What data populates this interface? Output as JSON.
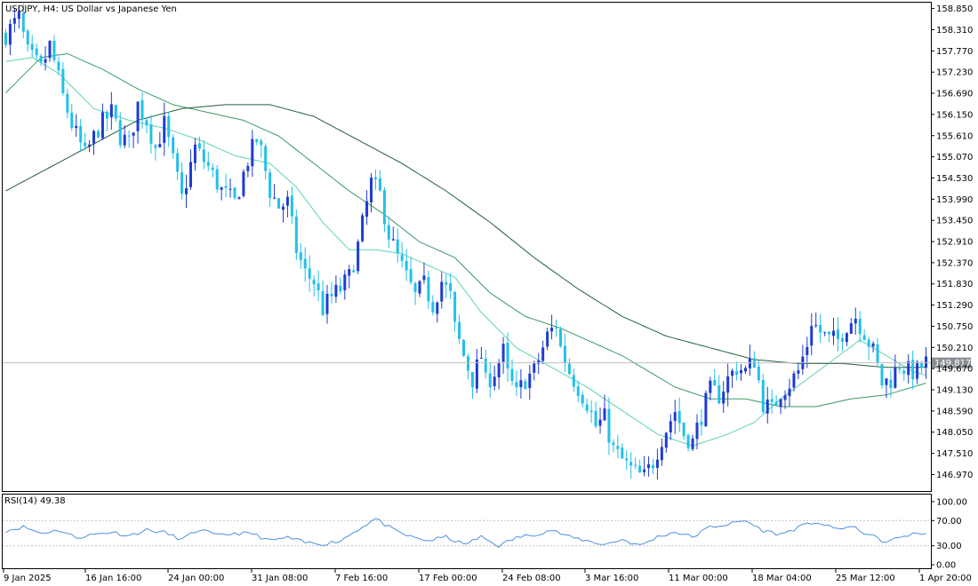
{
  "header": {
    "symbol_line": "USDJPY, H4:  US Dollar vs Japanese Yen",
    "rsi_line": "RSI(14) 49.38"
  },
  "chart_data": [
    {
      "type": "candlestick",
      "title": "USDJPY, H4:  US Dollar vs Japanese Yen",
      "ylim": [
        146.55,
        159.0
      ],
      "y_ticks": [
        "158.850",
        "158.310",
        "157.770",
        "157.230",
        "156.690",
        "156.150",
        "155.610",
        "155.070",
        "154.530",
        "153.990",
        "153.450",
        "152.910",
        "152.370",
        "151.830",
        "151.290",
        "150.750",
        "150.210",
        "149.670",
        "149.130",
        "148.590",
        "148.050",
        "147.510",
        "146.970"
      ],
      "x_ticks": [
        "9 Jan 2025",
        "16 Jan 16:00",
        "24 Jan 00:00",
        "31 Jan 08:00",
        "7 Feb 16:00",
        "17 Feb 00:00",
        "24 Feb 08:00",
        "3 Mar 16:00",
        "11 Mar 00:00",
        "18 Mar 04:00",
        "25 Mar 12:00",
        "1 Apr 20:00"
      ],
      "current_price": "149.817",
      "current_price_value": 149.817,
      "close_path": [
        [
          0,
          158.2
        ],
        [
          3,
          158.6
        ],
        [
          5,
          157.7
        ],
        [
          8,
          157.3
        ],
        [
          10,
          157.9
        ],
        [
          11,
          157.5
        ],
        [
          13,
          156.6
        ],
        [
          15,
          155.9
        ],
        [
          18,
          155.1
        ],
        [
          21,
          155.8
        ],
        [
          24,
          156.2
        ],
        [
          26,
          155.6
        ],
        [
          28,
          155.4
        ],
        [
          30,
          156.4
        ],
        [
          32,
          156.0
        ],
        [
          34,
          155.3
        ],
        [
          36,
          155.9
        ],
        [
          40,
          154.0
        ],
        [
          43,
          155.3
        ],
        [
          46,
          154.8
        ],
        [
          49,
          154.2
        ],
        [
          52,
          153.9
        ],
        [
          55,
          155.0
        ],
        [
          57,
          155.5
        ],
        [
          58,
          155.2
        ],
        [
          60,
          154.2
        ],
        [
          62,
          153.8
        ],
        [
          64,
          153.9
        ],
        [
          66,
          152.7
        ],
        [
          68,
          152.1
        ],
        [
          70,
          151.9
        ],
        [
          72,
          151.2
        ],
        [
          74,
          151.5
        ],
        [
          76,
          151.7
        ],
        [
          78,
          152.0
        ],
        [
          80,
          152.8
        ],
        [
          83,
          154.4
        ],
        [
          85,
          154.1
        ],
        [
          87,
          153.1
        ],
        [
          89,
          152.5
        ],
        [
          91,
          152.0
        ],
        [
          93,
          151.5
        ],
        [
          95,
          151.8
        ],
        [
          97,
          151.3
        ],
        [
          99,
          151.9
        ],
        [
          101,
          151.5
        ],
        [
          102,
          150.7
        ],
        [
          104,
          150.0
        ],
        [
          106,
          149.4
        ],
        [
          108,
          150.0
        ],
        [
          109,
          149.3
        ],
        [
          111,
          149.6
        ],
        [
          113,
          150.1
        ],
        [
          114,
          149.5
        ],
        [
          116,
          149.0
        ],
        [
          118,
          149.4
        ],
        [
          120,
          149.6
        ],
        [
          123,
          150.5
        ],
        [
          125,
          150.8
        ],
        [
          126,
          150.2
        ],
        [
          128,
          149.6
        ],
        [
          130,
          149.2
        ],
        [
          132,
          148.8
        ],
        [
          134,
          148.2
        ],
        [
          136,
          148.4
        ],
        [
          138,
          147.6
        ],
        [
          141,
          147.2
        ],
        [
          143,
          147.0
        ],
        [
          145,
          146.9
        ],
        [
          147,
          147.3
        ],
        [
          149,
          147.9
        ],
        [
          152,
          148.6
        ],
        [
          154,
          148.0
        ],
        [
          156,
          147.8
        ],
        [
          158,
          148.5
        ],
        [
          160,
          149.1
        ],
        [
          162,
          149.0
        ],
        [
          164,
          149.4
        ],
        [
          166,
          149.7
        ],
        [
          168,
          149.6
        ],
        [
          170,
          149.9
        ],
        [
          172,
          148.8
        ],
        [
          174,
          148.6
        ],
        [
          176,
          149.1
        ],
        [
          178,
          149.3
        ],
        [
          180,
          149.6
        ],
        [
          182,
          150.3
        ],
        [
          183,
          150.9
        ],
        [
          185,
          150.6
        ],
        [
          187,
          150.4
        ],
        [
          189,
          150.4
        ],
        [
          191,
          150.8
        ],
        [
          193,
          151.0
        ],
        [
          195,
          150.6
        ],
        [
          197,
          150.1
        ],
        [
          199,
          149.3
        ],
        [
          201,
          149.4
        ],
        [
          203,
          149.8
        ],
        [
          205,
          149.6
        ],
        [
          207,
          149.6
        ],
        [
          209,
          149.82
        ]
      ],
      "series": [
        {
          "name": "",
          "color": "#5fd3b3",
          "values": [
            [
              0,
              157.5
            ],
            [
              6,
              157.6
            ],
            [
              12,
              157.2
            ],
            [
              20,
              156.3
            ],
            [
              28,
              156.0
            ],
            [
              36,
              155.8
            ],
            [
              44,
              155.5
            ],
            [
              52,
              155.1
            ],
            [
              60,
              154.9
            ],
            [
              66,
              154.3
            ],
            [
              72,
              153.4
            ],
            [
              78,
              152.7
            ],
            [
              84,
              152.7
            ],
            [
              90,
              152.6
            ],
            [
              96,
              152.3
            ],
            [
              102,
              152.0
            ],
            [
              108,
              151.1
            ],
            [
              116,
              150.2
            ],
            [
              124,
              149.7
            ],
            [
              132,
              149.2
            ],
            [
              140,
              148.6
            ],
            [
              148,
              148.0
            ],
            [
              156,
              147.7
            ],
            [
              164,
              148.0
            ],
            [
              170,
              148.3
            ],
            [
              176,
              148.9
            ],
            [
              182,
              149.4
            ],
            [
              188,
              149.9
            ],
            [
              194,
              150.4
            ],
            [
              200,
              150.0
            ],
            [
              206,
              149.6
            ],
            [
              209,
              149.5
            ]
          ]
        },
        {
          "name": "",
          "color": "#3a9a66",
          "values": [
            [
              0,
              156.7
            ],
            [
              8,
              157.6
            ],
            [
              14,
              157.7
            ],
            [
              22,
              157.3
            ],
            [
              30,
              156.8
            ],
            [
              38,
              156.4
            ],
            [
              46,
              156.2
            ],
            [
              54,
              156.0
            ],
            [
              62,
              155.6
            ],
            [
              70,
              154.9
            ],
            [
              78,
              154.2
            ],
            [
              86,
              153.6
            ],
            [
              94,
              152.9
            ],
            [
              102,
              152.5
            ],
            [
              110,
              151.6
            ],
            [
              118,
              151.0
            ],
            [
              126,
              150.7
            ],
            [
              134,
              150.3
            ],
            [
              140,
              150.0
            ],
            [
              146,
              149.6
            ],
            [
              152,
              149.2
            ],
            [
              160,
              148.9
            ],
            [
              168,
              148.9
            ],
            [
              176,
              148.7
            ],
            [
              184,
              148.7
            ],
            [
              192,
              148.9
            ],
            [
              200,
              149.0
            ],
            [
              206,
              149.2
            ],
            [
              209,
              149.3
            ]
          ]
        },
        {
          "name": "",
          "color": "#245f3a",
          "values": [
            [
              0,
              154.2
            ],
            [
              10,
              154.8
            ],
            [
              20,
              155.4
            ],
            [
              30,
              156.0
            ],
            [
              40,
              156.3
            ],
            [
              50,
              156.4
            ],
            [
              60,
              156.4
            ],
            [
              70,
              156.1
            ],
            [
              80,
              155.5
            ],
            [
              90,
              154.9
            ],
            [
              100,
              154.2
            ],
            [
              110,
              153.4
            ],
            [
              120,
              152.5
            ],
            [
              130,
              151.7
            ],
            [
              140,
              151.0
            ],
            [
              150,
              150.5
            ],
            [
              160,
              150.2
            ],
            [
              170,
              149.9
            ],
            [
              180,
              149.8
            ],
            [
              190,
              149.8
            ],
            [
              200,
              149.7
            ],
            [
              209,
              149.7
            ]
          ]
        }
      ]
    },
    {
      "type": "line",
      "title": "RSI(14) 49.38",
      "ylim": [
        0,
        100
      ],
      "y_ticks": [
        "100.00",
        "70.00",
        "30.00",
        "0.00"
      ],
      "levels": [
        70,
        30
      ],
      "color": "#4f8fdd",
      "values": [
        [
          0,
          54
        ],
        [
          4,
          60
        ],
        [
          8,
          50
        ],
        [
          12,
          55
        ],
        [
          16,
          43
        ],
        [
          20,
          48
        ],
        [
          24,
          52
        ],
        [
          28,
          46
        ],
        [
          32,
          55
        ],
        [
          36,
          51
        ],
        [
          40,
          40
        ],
        [
          44,
          56
        ],
        [
          48,
          46
        ],
        [
          52,
          50
        ],
        [
          56,
          49
        ],
        [
          60,
          38
        ],
        [
          64,
          43
        ],
        [
          68,
          35
        ],
        [
          72,
          33
        ],
        [
          76,
          38
        ],
        [
          80,
          56
        ],
        [
          84,
          73
        ],
        [
          88,
          55
        ],
        [
          92,
          44
        ],
        [
          96,
          38
        ],
        [
          100,
          44
        ],
        [
          104,
          32
        ],
        [
          108,
          44
        ],
        [
          112,
          30
        ],
        [
          116,
          43
        ],
        [
          120,
          48
        ],
        [
          124,
          55
        ],
        [
          128,
          44
        ],
        [
          132,
          38
        ],
        [
          136,
          32
        ],
        [
          140,
          40
        ],
        [
          144,
          30
        ],
        [
          148,
          44
        ],
        [
          152,
          52
        ],
        [
          156,
          44
        ],
        [
          160,
          60
        ],
        [
          164,
          64
        ],
        [
          168,
          70
        ],
        [
          172,
          54
        ],
        [
          176,
          48
        ],
        [
          180,
          59
        ],
        [
          184,
          68
        ],
        [
          188,
          57
        ],
        [
          192,
          60
        ],
        [
          196,
          48
        ],
        [
          200,
          35
        ],
        [
          204,
          46
        ],
        [
          208,
          50
        ],
        [
          209,
          49.38
        ]
      ]
    }
  ],
  "colors": {
    "bull_candle": "#1f3bd1",
    "bear_candle": "#22c0e8",
    "grid_level": "#bfbfbf",
    "price_label_bg": "#8a8f96",
    "axis": "#000000"
  }
}
